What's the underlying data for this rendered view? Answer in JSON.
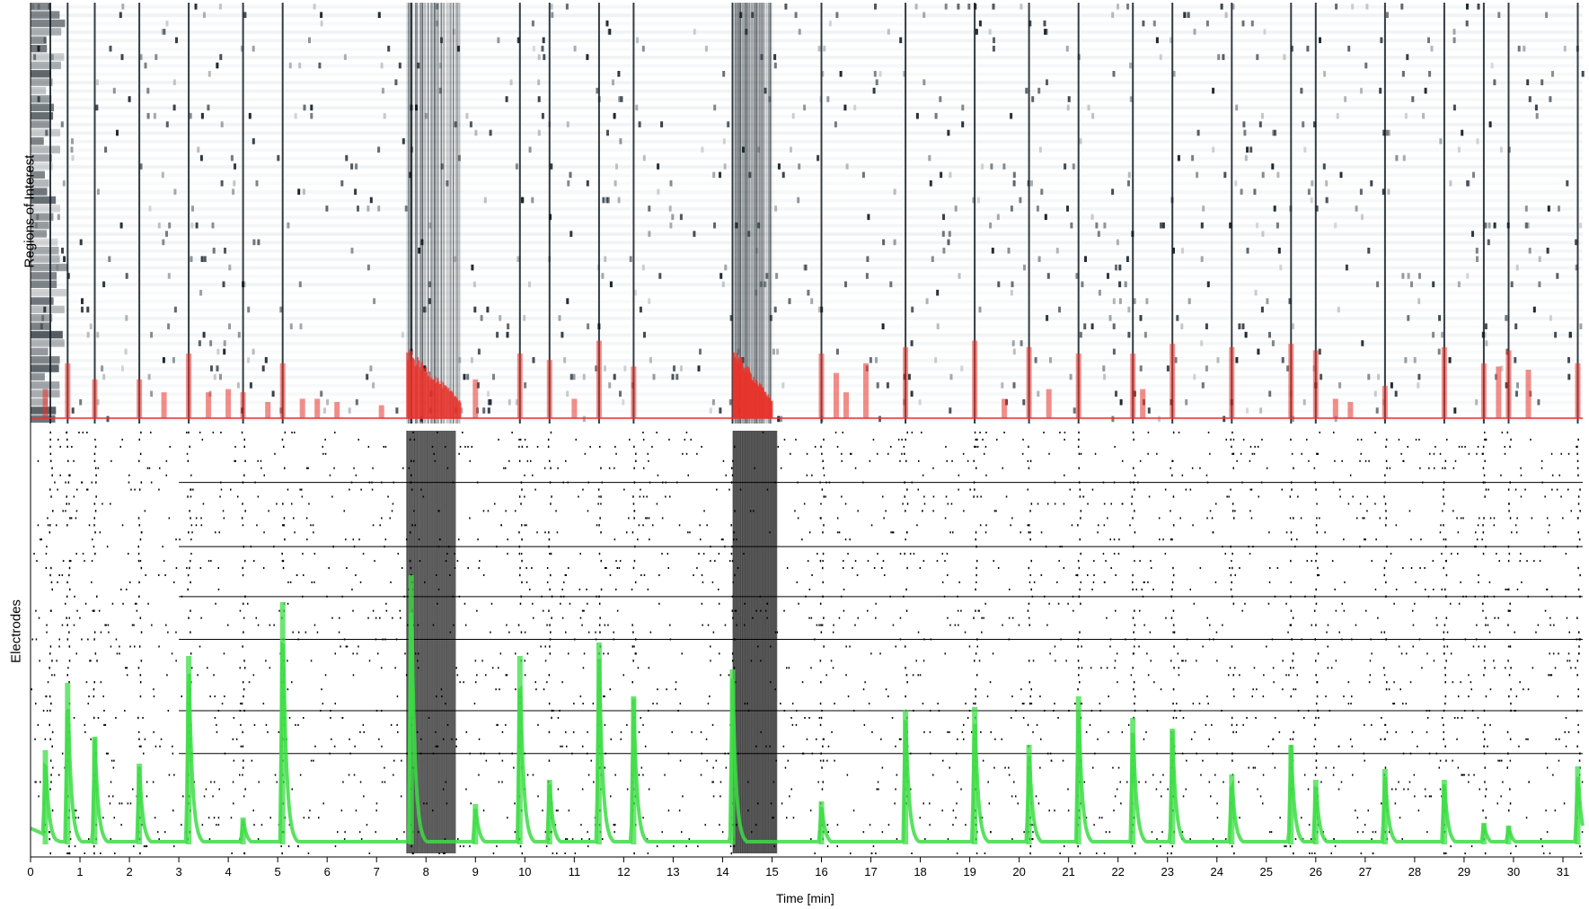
{
  "chart_data": [
    {
      "type": "heatmap",
      "panel": "top",
      "ylabel": "Regions of Interest",
      "xlim": [
        0,
        31.4
      ],
      "n_rows": 50,
      "burst_times_min": [
        0.4,
        0.75,
        1.3,
        2.2,
        3.2,
        4.3,
        5.1,
        7.7,
        9.9,
        10.5,
        11.5,
        12.2,
        14.2,
        16.0,
        17.7,
        19.1,
        20.2,
        21.2,
        22.3,
        23.1,
        24.3,
        25.5,
        26.0,
        27.4,
        28.6,
        29.4,
        29.9,
        31.3
      ],
      "colors": {
        "map": "#0f1a22",
        "overlay": "#e8322a"
      },
      "overlay_bars": [
        {
          "t": 0.3,
          "v": 0.45
        },
        {
          "t": 0.75,
          "v": 0.85
        },
        {
          "t": 1.3,
          "v": 0.6
        },
        {
          "t": 2.2,
          "v": 0.6
        },
        {
          "t": 2.7,
          "v": 0.4
        },
        {
          "t": 3.2,
          "v": 1.0
        },
        {
          "t": 3.6,
          "v": 0.4
        },
        {
          "t": 4.0,
          "v": 0.45
        },
        {
          "t": 4.3,
          "v": 0.4
        },
        {
          "t": 4.8,
          "v": 0.25
        },
        {
          "t": 5.1,
          "v": 0.85
        },
        {
          "t": 5.5,
          "v": 0.3
        },
        {
          "t": 5.8,
          "v": 0.3
        },
        {
          "t": 6.2,
          "v": 0.25
        },
        {
          "t": 7.1,
          "v": 0.2
        },
        {
          "t": 9.0,
          "v": 0.6
        },
        {
          "t": 9.9,
          "v": 1.0
        },
        {
          "t": 10.5,
          "v": 0.9
        },
        {
          "t": 11.0,
          "v": 0.3
        },
        {
          "t": 11.5,
          "v": 1.2
        },
        {
          "t": 12.2,
          "v": 0.8
        },
        {
          "t": 16.0,
          "v": 1.0
        },
        {
          "t": 16.3,
          "v": 0.7
        },
        {
          "t": 16.5,
          "v": 0.4
        },
        {
          "t": 16.9,
          "v": 0.85
        },
        {
          "t": 17.7,
          "v": 1.1
        },
        {
          "t": 19.1,
          "v": 1.2
        },
        {
          "t": 19.7,
          "v": 0.3
        },
        {
          "t": 20.2,
          "v": 1.1
        },
        {
          "t": 20.6,
          "v": 0.45
        },
        {
          "t": 21.2,
          "v": 1.0
        },
        {
          "t": 22.3,
          "v": 1.0
        },
        {
          "t": 22.5,
          "v": 0.45
        },
        {
          "t": 23.1,
          "v": 1.15
        },
        {
          "t": 24.3,
          "v": 1.1
        },
        {
          "t": 25.5,
          "v": 1.15
        },
        {
          "t": 26.0,
          "v": 1.05
        },
        {
          "t": 26.4,
          "v": 0.3
        },
        {
          "t": 26.7,
          "v": 0.25
        },
        {
          "t": 27.4,
          "v": 0.5
        },
        {
          "t": 28.6,
          "v": 1.1
        },
        {
          "t": 29.4,
          "v": 0.85
        },
        {
          "t": 29.7,
          "v": 0.8
        },
        {
          "t": 29.9,
          "v": 1.05
        },
        {
          "t": 30.3,
          "v": 0.75
        },
        {
          "t": 31.3,
          "v": 0.85
        }
      ],
      "dense_bursts": [
        {
          "start": 7.6,
          "end": 8.7
        },
        {
          "start": 14.2,
          "end": 15.0
        }
      ]
    },
    {
      "type": "scatter",
      "panel": "bottom",
      "ylabel": "Electrodes",
      "xlabel": "Time [min]",
      "xlim": [
        0,
        31.4
      ],
      "xticks": [
        0,
        1,
        2,
        3,
        4,
        5,
        6,
        7,
        8,
        9,
        10,
        11,
        12,
        13,
        14,
        15,
        16,
        17,
        18,
        19,
        20,
        21,
        22,
        23,
        24,
        25,
        26,
        27,
        28,
        29,
        30,
        31
      ],
      "colors": {
        "raster": "#000000",
        "trace": "#3ddc45"
      },
      "n_electrodes": 60,
      "persistent_electrodes": [
        7,
        16,
        23,
        29,
        39,
        45
      ],
      "dense_bursts": [
        {
          "start": 7.6,
          "end": 8.6
        },
        {
          "start": 14.2,
          "end": 15.1
        }
      ],
      "trace_peaks": [
        {
          "t": 0.3,
          "v": 0.35
        },
        {
          "t": 0.75,
          "v": 0.6
        },
        {
          "t": 1.3,
          "v": 0.4
        },
        {
          "t": 2.2,
          "v": 0.3
        },
        {
          "t": 3.2,
          "v": 0.7
        },
        {
          "t": 4.3,
          "v": 0.1
        },
        {
          "t": 5.1,
          "v": 0.9
        },
        {
          "t": 7.7,
          "v": 1.0
        },
        {
          "t": 9.0,
          "v": 0.15
        },
        {
          "t": 9.9,
          "v": 0.7
        },
        {
          "t": 10.5,
          "v": 0.24
        },
        {
          "t": 11.5,
          "v": 0.75
        },
        {
          "t": 12.2,
          "v": 0.55
        },
        {
          "t": 14.2,
          "v": 0.65
        },
        {
          "t": 16.0,
          "v": 0.16
        },
        {
          "t": 17.7,
          "v": 0.5
        },
        {
          "t": 19.1,
          "v": 0.51
        },
        {
          "t": 20.2,
          "v": 0.37
        },
        {
          "t": 21.2,
          "v": 0.55
        },
        {
          "t": 22.3,
          "v": 0.47
        },
        {
          "t": 23.1,
          "v": 0.43
        },
        {
          "t": 24.3,
          "v": 0.26
        },
        {
          "t": 25.5,
          "v": 0.37
        },
        {
          "t": 26.0,
          "v": 0.24
        },
        {
          "t": 27.4,
          "v": 0.28
        },
        {
          "t": 28.6,
          "v": 0.24
        },
        {
          "t": 29.4,
          "v": 0.08
        },
        {
          "t": 29.9,
          "v": 0.07
        },
        {
          "t": 31.3,
          "v": 0.29
        }
      ]
    }
  ]
}
